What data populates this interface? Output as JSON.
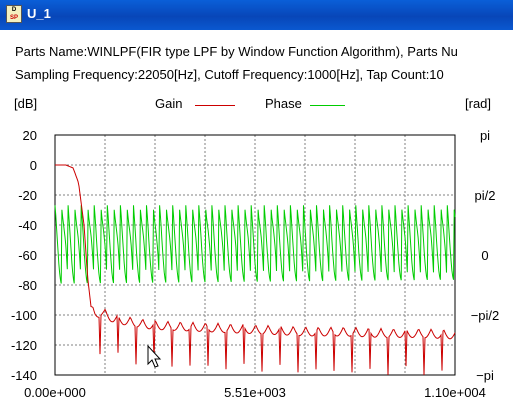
{
  "window": {
    "title": "U_1",
    "icon_letters_top": "D",
    "icon_letters_bottom": "SP"
  },
  "info": {
    "line1": "Parts Name:WINLPF(FIR type LPF by Window Function Algorithm), Parts Nu",
    "line2": "Sampling Frequency:22050[Hz], Cutoff Frequency:1000[Hz], Tap Count:10"
  },
  "chart": {
    "left_unit": "[dB]",
    "right_unit": "[rad]",
    "legend": {
      "gain": "Gain",
      "phase": "Phase"
    },
    "colors": {
      "gain": "#cc0000",
      "phase": "#00cc00",
      "grid": "#808080"
    },
    "y_left_ticks": [
      "20",
      "0",
      "-20",
      "-40",
      "-60",
      "-80",
      "-100",
      "-120",
      "-140"
    ],
    "y_right_ticks": [
      "pi",
      "pi/2",
      "0",
      "−pi/2",
      "−pi"
    ],
    "x_ticks": [
      "0.00e+000",
      "5.51e+003",
      "1.10e+004"
    ]
  },
  "chart_data": {
    "type": "line",
    "x_range": [
      0,
      11025
    ],
    "y_left_range": [
      -140,
      20
    ],
    "y_right_range": [
      "-pi",
      "pi"
    ],
    "grid": true,
    "series": [
      {
        "name": "Gain",
        "axis": "left",
        "unit": "dB",
        "points": [
          [
            0,
            0
          ],
          [
            300,
            0
          ],
          [
            500,
            -2
          ],
          [
            650,
            -12
          ],
          [
            800,
            -40
          ],
          [
            900,
            -75
          ],
          [
            1000,
            -96
          ],
          [
            1100,
            -99
          ],
          [
            1300,
            -98
          ],
          [
            1600,
            -102
          ],
          [
            2000,
            -104
          ],
          [
            2500,
            -106
          ],
          [
            3000,
            -107
          ],
          [
            4000,
            -108
          ],
          [
            5000,
            -109
          ],
          [
            6000,
            -110
          ],
          [
            7000,
            -111
          ],
          [
            8000,
            -111
          ],
          [
            9000,
            -112
          ],
          [
            10000,
            -112
          ],
          [
            11025,
            -113
          ]
        ]
      },
      {
        "name": "Phase",
        "axis": "right",
        "unit": "rad",
        "description_values": {
          "max": 1.3,
          "min": -1.3,
          "oscillating": true
        }
      }
    ]
  }
}
